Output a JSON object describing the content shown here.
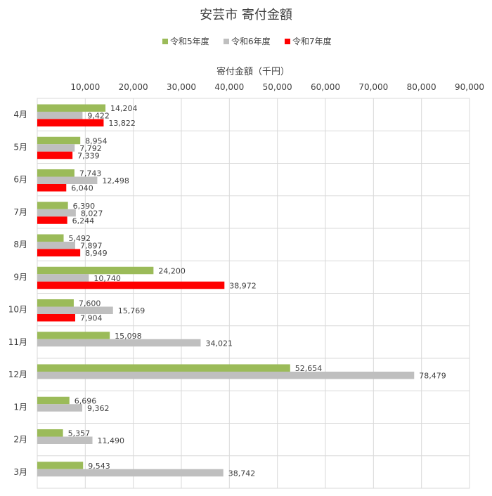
{
  "chart_data": {
    "type": "bar",
    "orientation": "horizontal",
    "title": "安芸市 寄付金額",
    "xlabel": "寄付金額（千円）",
    "ylabel": "",
    "xlim": [
      0,
      90000
    ],
    "x_ticks": [
      "10,000",
      "20,000",
      "30,000",
      "40,000",
      "50,000",
      "60,000",
      "70,000",
      "80,000",
      "90,000"
    ],
    "grid": true,
    "legend_position": "top",
    "categories": [
      "4月",
      "5月",
      "6月",
      "7月",
      "8月",
      "9月",
      "10月",
      "11月",
      "12月",
      "1月",
      "2月",
      "3月"
    ],
    "series": [
      {
        "name": "令和5年度",
        "color": "#9bbb59",
        "values": [
          14204,
          8954,
          7743,
          6390,
          5492,
          24200,
          7600,
          15098,
          52654,
          6696,
          5357,
          9543
        ],
        "labels": [
          "14,204",
          "8,954",
          "7,743",
          "6,390",
          "5,492",
          "24,200",
          "7,600",
          "15,098",
          "52,654",
          "6,696",
          "5,357",
          "9,543"
        ]
      },
      {
        "name": "令和6年度",
        "color": "#bfbfbf",
        "values": [
          9422,
          7792,
          12498,
          8027,
          7897,
          10740,
          15769,
          34021,
          78479,
          9362,
          11490,
          38742
        ],
        "labels": [
          "9,422",
          "7,792",
          "12,498",
          "8,027",
          "7,897",
          "10,740",
          "15,769",
          "34,021",
          "78,479",
          "9,362",
          "11,490",
          "38,742"
        ]
      },
      {
        "name": "令和7年度",
        "color": "#ff0000",
        "values": [
          13822,
          7339,
          6040,
          6244,
          8949,
          38972,
          7904,
          null,
          null,
          null,
          null,
          null
        ],
        "labels": [
          "13,822",
          "7,339",
          "6,040",
          "6,244",
          "8,949",
          "38,972",
          "7,904",
          "",
          "",
          "",
          "",
          ""
        ]
      }
    ]
  }
}
